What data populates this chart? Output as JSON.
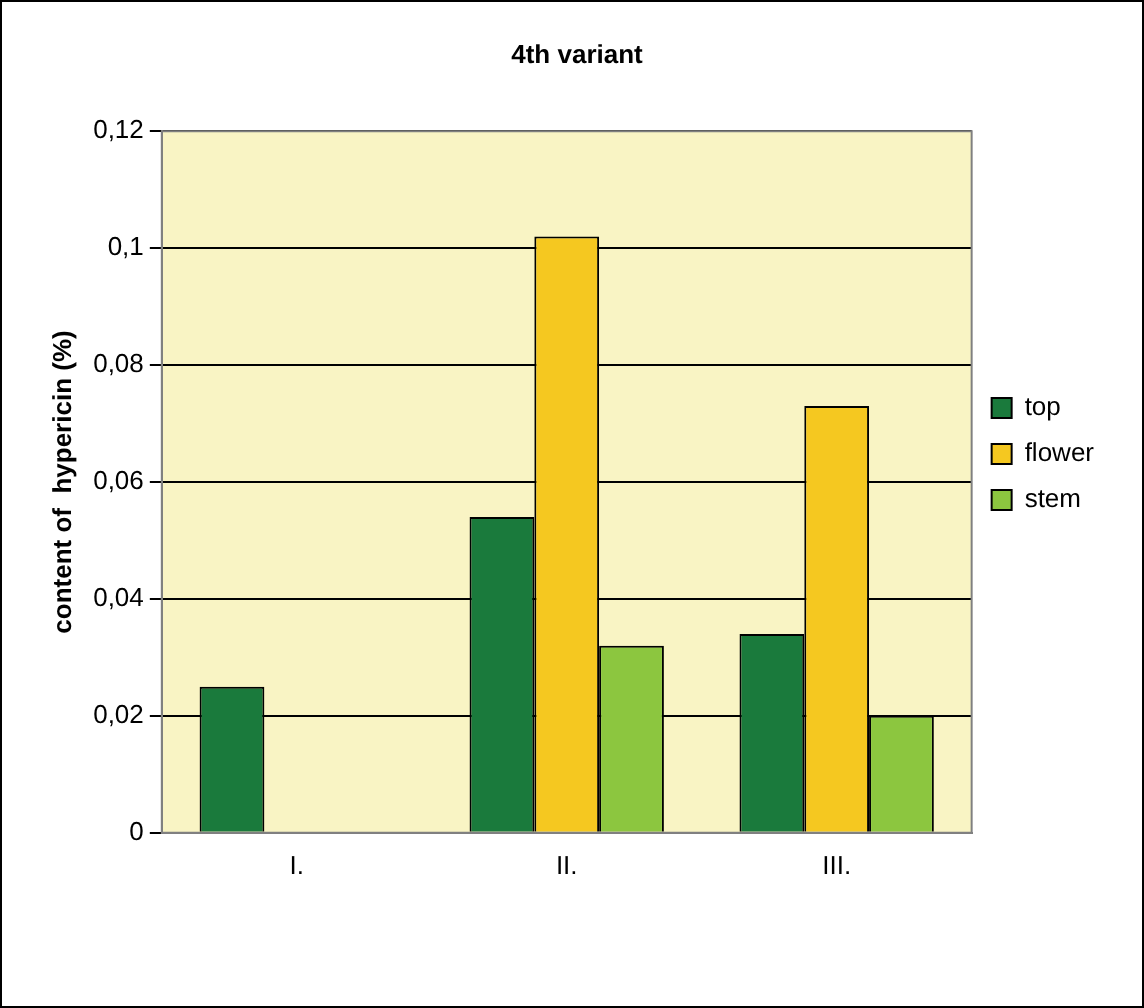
{
  "chart_data": {
    "type": "bar",
    "title": "4th variant",
    "ylabel": "content of  hypericin (%)",
    "categories": [
      "I.",
      "II.",
      "III."
    ],
    "series": [
      {
        "name": "top",
        "color": "#1a7a3c",
        "values": [
          0.025,
          0.054,
          0.034
        ]
      },
      {
        "name": "flower",
        "color": "#f5c820",
        "values": [
          null,
          0.102,
          0.073
        ]
      },
      {
        "name": "stem",
        "color": "#8cc63f",
        "values": [
          null,
          0.032,
          0.02
        ]
      }
    ],
    "ylim": [
      0,
      0.12
    ],
    "yticks": [
      0,
      {
        "value": 0.02,
        "label": "0,02"
      },
      {
        "value": 0.04,
        "label": "0,04"
      },
      {
        "value": 0.06,
        "label": "0,06"
      },
      {
        "value": 0.08,
        "label": "0,08"
      },
      {
        "value": 0.1,
        "label": "0,1"
      },
      {
        "value": 0.12,
        "label": "0,12"
      }
    ],
    "grid": "y",
    "legend": "right"
  }
}
